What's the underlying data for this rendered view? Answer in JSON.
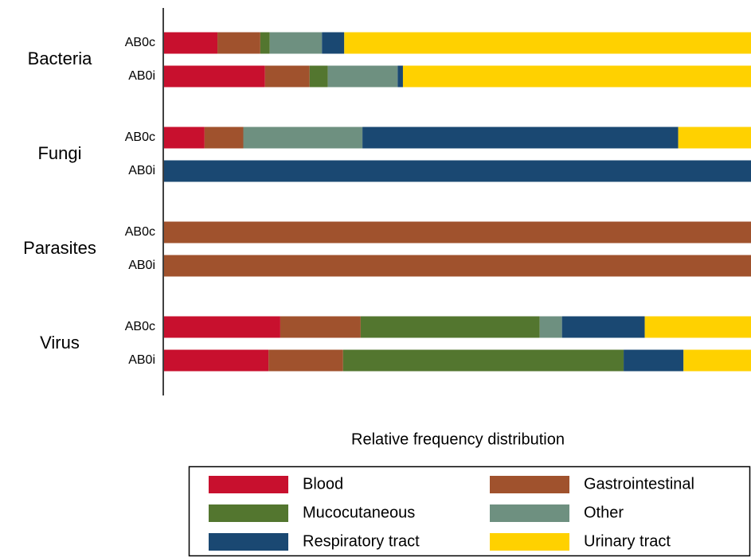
{
  "chart_data": {
    "type": "stacked-barh",
    "x_label": "Relative frequency distribution",
    "groups": [
      "Bacteria",
      "Fungi",
      "Parasites",
      "Virus"
    ],
    "categories": [
      "AB0c",
      "AB0i",
      "AB0c",
      "AB0i",
      "AB0c",
      "AB0i",
      "AB0c",
      "AB0i"
    ],
    "xlim": [
      0,
      100
    ],
    "series": [
      {
        "name": "Blood",
        "color": "#c8102e",
        "values": [
          9.1,
          17.2,
          6.9,
          0,
          0,
          0,
          19.8,
          17.8
        ]
      },
      {
        "name": "Gastrointestinal",
        "color": "#a0522d",
        "values": [
          7.3,
          7.6,
          6.6,
          0,
          100,
          100,
          13.7,
          12.7
        ]
      },
      {
        "name": "Mucocutaneous",
        "color": "#53762f",
        "values": [
          1.6,
          3.1,
          0,
          0,
          0,
          0,
          30.5,
          47.8
        ]
      },
      {
        "name": "Other",
        "color": "#6e9080",
        "values": [
          8.9,
          11.9,
          20.3,
          0,
          0,
          0,
          3.8,
          0
        ]
      },
      {
        "name": "Respiratory tract",
        "color": "#1a4872",
        "values": [
          3.8,
          0.9,
          53.8,
          100,
          0,
          0,
          14.1,
          10.2
        ]
      },
      {
        "name": "Urinary tract",
        "color": "#ffd100",
        "values": [
          69.3,
          59.3,
          12.4,
          0,
          0,
          0,
          18.1,
          11.5
        ]
      }
    ],
    "legend": "bottom"
  }
}
